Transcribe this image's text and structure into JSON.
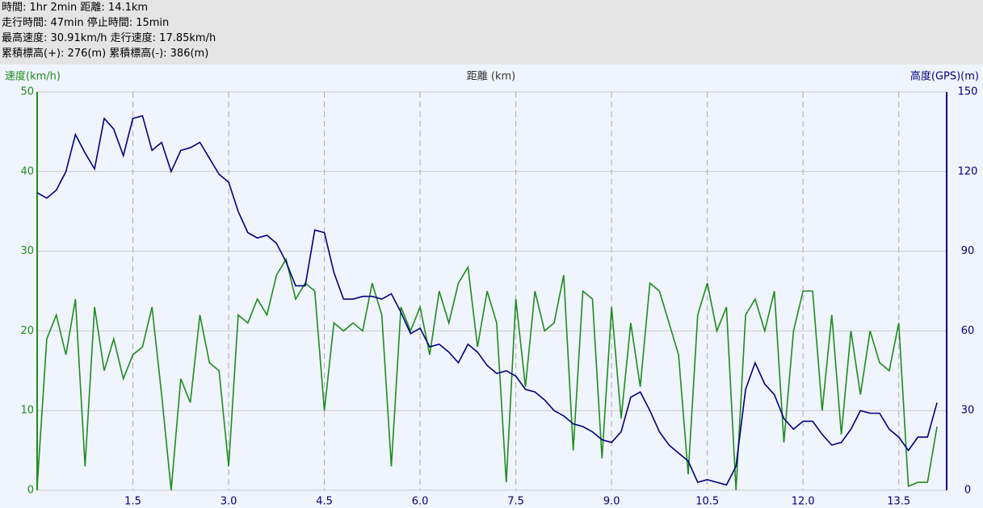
{
  "header": {
    "lines": [
      "時間: 1hr 2min 距離: 14.1km",
      "走行時間: 47min 停止時間: 15min",
      "最高速度: 30.91km/h 走行速度: 17.85km/h",
      "累積標高(+): 276(m) 累積標高(-): 386(m)"
    ]
  },
  "chart_data": {
    "type": "line",
    "xlabel": "距離 (km)",
    "ylabel": "速度(km/h)",
    "y2label": "高度(GPS)(m)",
    "x": [
      0,
      0.15,
      0.3,
      0.45,
      0.6,
      0.75,
      0.9,
      1.05,
      1.2,
      1.35,
      1.5,
      1.65,
      1.8,
      1.95,
      2.1,
      2.25,
      2.4,
      2.55,
      2.7,
      2.85,
      3.0,
      3.15,
      3.3,
      3.45,
      3.6,
      3.75,
      3.9,
      4.05,
      4.2,
      4.35,
      4.5,
      4.65,
      4.8,
      4.95,
      5.1,
      5.25,
      5.4,
      5.55,
      5.7,
      5.85,
      6.0,
      6.15,
      6.3,
      6.45,
      6.6,
      6.75,
      6.9,
      7.05,
      7.2,
      7.35,
      7.5,
      7.65,
      7.8,
      7.95,
      8.1,
      8.25,
      8.4,
      8.55,
      8.7,
      8.85,
      9.0,
      9.15,
      9.3,
      9.45,
      9.6,
      9.75,
      9.9,
      10.05,
      10.2,
      10.35,
      10.5,
      10.65,
      10.8,
      10.95,
      11.1,
      11.25,
      11.4,
      11.55,
      11.7,
      11.85,
      12.0,
      12.15,
      12.3,
      12.45,
      12.6,
      12.75,
      12.9,
      13.05,
      13.2,
      13.35,
      13.5,
      13.65,
      13.8,
      13.95,
      14.1
    ],
    "series": [
      {
        "color": "#1e8c1e",
        "axis": "y",
        "values": [
          0.5,
          19,
          22,
          17,
          24,
          3,
          23,
          15,
          19,
          14,
          17,
          18,
          23,
          12,
          0,
          14,
          11,
          22,
          16,
          15,
          3,
          22,
          21,
          24,
          22,
          27,
          29,
          24,
          26,
          25,
          10,
          21,
          20,
          21,
          20,
          26,
          22,
          3,
          23,
          20,
          23,
          17,
          25,
          21,
          26,
          28,
          18,
          25,
          21,
          1,
          24,
          13,
          25,
          20,
          21,
          27,
          5,
          25,
          24,
          4,
          23,
          9,
          21,
          13,
          26,
          25,
          21,
          17,
          2,
          22,
          26,
          20,
          23,
          0,
          22,
          24,
          20,
          25,
          6,
          20,
          25,
          25,
          10,
          22,
          7,
          20,
          12,
          20,
          16,
          15,
          21,
          0.5,
          1,
          1,
          8
        ]
      },
      {
        "color": "#000080",
        "axis": "y2",
        "values": [
          112,
          110,
          113,
          120,
          134,
          127,
          121,
          140,
          136,
          126,
          140,
          141,
          128,
          131,
          120,
          128,
          129,
          131,
          125,
          119,
          116,
          105,
          97,
          95,
          96,
          93,
          86,
          77,
          77,
          98,
          97,
          82,
          72,
          72,
          73,
          73,
          72,
          74,
          67,
          59,
          61,
          54,
          55,
          52,
          48,
          55,
          52,
          47,
          44,
          45,
          43,
          38,
          37,
          34,
          30,
          28,
          25,
          24,
          22,
          19,
          18,
          22,
          35,
          37,
          30,
          22,
          17,
          14,
          11,
          3,
          4,
          3,
          2,
          9,
          38,
          48,
          40,
          36,
          27,
          23,
          26,
          26,
          21,
          17,
          18,
          23,
          30,
          29,
          29,
          23,
          20,
          15,
          20,
          20,
          33
        ]
      }
    ],
    "xlim": [
      0,
      14.25
    ],
    "ylim": [
      0,
      50
    ],
    "y2lim": [
      0,
      150
    ],
    "xticks": [
      1.5,
      {
        "value": 3,
        "label": "3.0"
      },
      4.5,
      {
        "value": 6,
        "label": "6.0"
      },
      7.5,
      {
        "value": 9,
        "label": "9.0"
      },
      10.5,
      {
        "value": 12,
        "label": "12.0"
      },
      13.5
    ],
    "yticks": [
      0,
      10,
      20,
      30,
      40,
      50
    ],
    "y2ticks": [
      0,
      30,
      60,
      90,
      120,
      150
    ],
    "grid": true
  }
}
